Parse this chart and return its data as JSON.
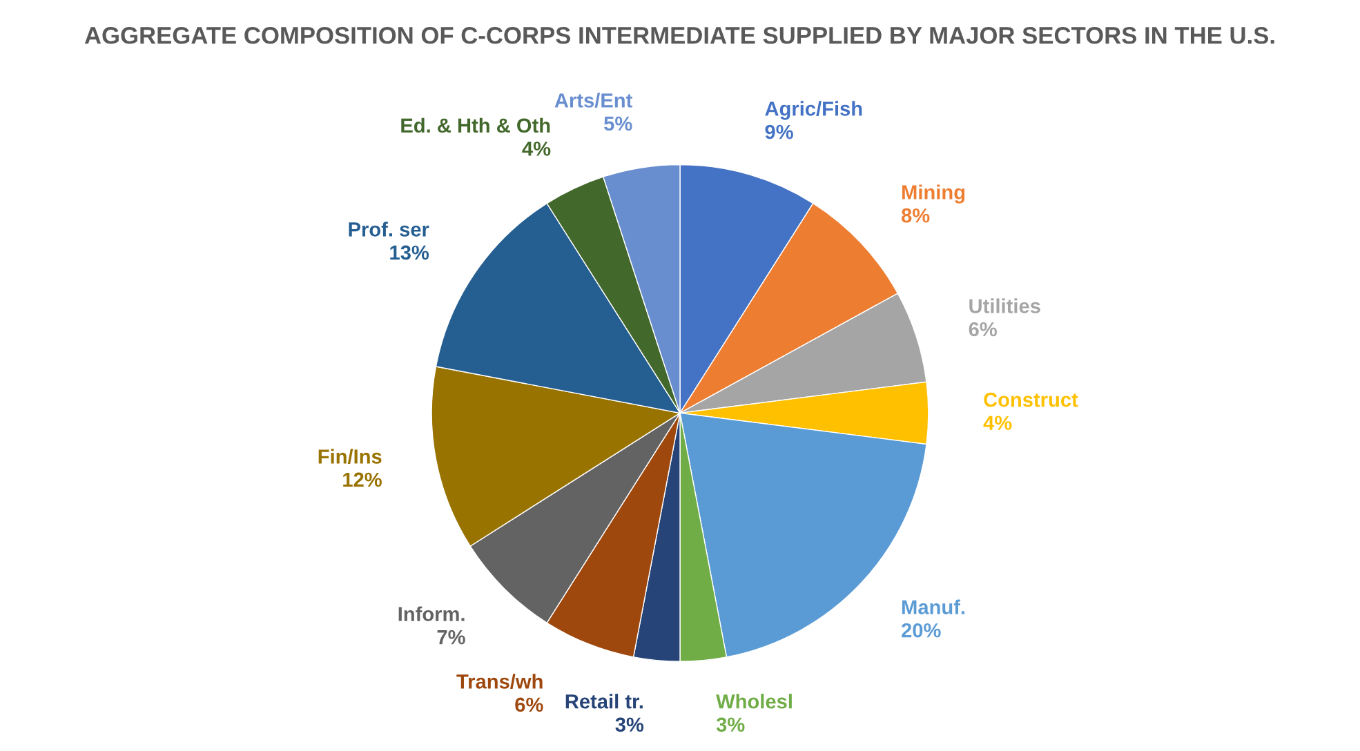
{
  "chart_data": {
    "type": "pie",
    "title": "AGGREGATE COMPOSITION OF C-CORPS INTERMEDIATE SUPPLIED BY MAJOR SECTORS IN THE U.S.",
    "categories": [
      "Agric/Fish",
      "Mining",
      "Utilities",
      "Construct",
      "Manuf.",
      "Wholesl",
      "Retail tr.",
      "Trans/wh",
      "Inform.",
      "Fin/Ins",
      "Prof. ser",
      "Ed. & Hth & Oth",
      "Arts/Ent"
    ],
    "values": [
      9,
      8,
      6,
      4,
      20,
      3,
      3,
      6,
      7,
      12,
      13,
      4,
      5
    ],
    "value_labels": [
      "9%",
      "8%",
      "6%",
      "4%",
      "20%",
      "3%",
      "3%",
      "6%",
      "7%",
      "12%",
      "13%",
      "4%",
      "5%"
    ],
    "colors": [
      "#4472c4",
      "#ed7d31",
      "#a5a5a5",
      "#ffc000",
      "#5b9bd5",
      "#70ad47",
      "#264478",
      "#9e480e",
      "#636363",
      "#997300",
      "#255e91",
      "#43682b",
      "#698ed0"
    ],
    "legend": false
  }
}
